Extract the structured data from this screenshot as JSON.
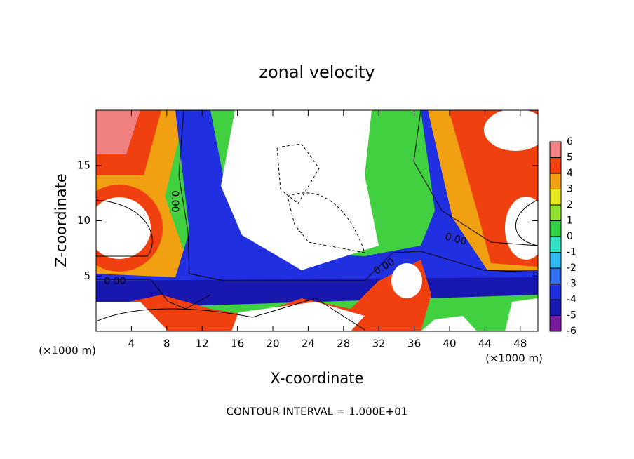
{
  "chart_data": {
    "type": "contour",
    "title": "zonal velocity",
    "x_label": "X-coordinate",
    "y_label": "Z-coordinate",
    "x_unit_label_left": "(×1000 m)",
    "x_unit_label_right": "(×1000 m)",
    "xlim": [
      0,
      50
    ],
    "xticks": [
      4,
      8,
      12,
      16,
      20,
      24,
      28,
      32,
      36,
      40,
      44,
      48
    ],
    "ylim": [
      0,
      20
    ],
    "yticks": [
      5,
      10,
      15
    ],
    "contour_labels": [
      "0.00",
      "0.00",
      "0.00",
      "0.00"
    ],
    "colorbar": {
      "levels": [
        -6,
        -5,
        -4,
        -3,
        -2,
        -1,
        0,
        1,
        2,
        3,
        4,
        5,
        6
      ],
      "colors": [
        "#7a1aa0",
        "#1818b0",
        "#2030e0",
        "#3070f0",
        "#30b8f0",
        "#30e0c0",
        "#30d040",
        "#90e030",
        "#e8e820",
        "#f0a010",
        "#f04010",
        "#f08080"
      ]
    },
    "footnote": "CONTOUR INTERVAL = 1.000E+01"
  }
}
